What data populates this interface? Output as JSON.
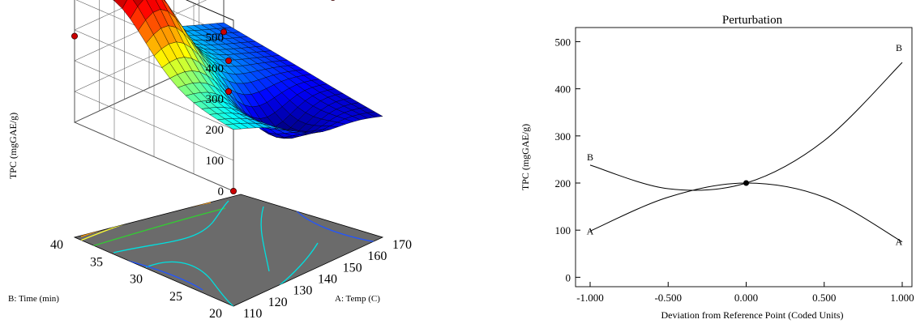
{
  "chart_data": [
    {
      "type": "surface3d",
      "title": "",
      "zlabel": "TPC (mgGAE/g)",
      "xlabel": "A: Temp (C)",
      "ylabel": "B: Time (min)",
      "z_ticks": [
        "0",
        "100",
        "200",
        "300",
        "400",
        "500"
      ],
      "x_ticks": [
        "110",
        "120",
        "130",
        "140",
        "150",
        "160",
        "170"
      ],
      "y_ticks": [
        "20",
        "25",
        "30",
        "35",
        "40"
      ],
      "zlim": [
        0,
        500
      ],
      "xlim": [
        110,
        170
      ],
      "ylim": [
        20,
        40
      ],
      "colormap": "jet",
      "floor_color": "#6b6b6b",
      "corner_values": [
        {
          "temp": 110,
          "time": 20,
          "tpc": 200
        },
        {
          "temp": 110,
          "time": 40,
          "tpc": 280
        },
        {
          "temp": 170,
          "time": 40,
          "tpc": 100
        },
        {
          "temp": 170,
          "time": 20,
          "tpc": 20
        }
      ],
      "peak": {
        "temp": 150,
        "time": 20,
        "tpc": 480
      },
      "design_points": [
        {
          "temp": 110,
          "time": 40,
          "tpc": 280
        },
        {
          "temp": 140,
          "time": 30,
          "tpc": 200
        },
        {
          "temp": 140,
          "time": 30,
          "tpc": 100
        },
        {
          "temp": 140,
          "time": 30,
          "tpc": 100
        },
        {
          "temp": 110,
          "time": 20,
          "tpc": 0
        },
        {
          "temp": 170,
          "time": 40,
          "tpc": 70
        },
        {
          "temp": 150,
          "time": 20,
          "tpc": 480
        }
      ]
    },
    {
      "type": "line",
      "title": "Perturbation",
      "xlabel": "Deviation from Reference Point (Coded Units)",
      "ylabel": "TPC (mgGAE/g)",
      "xlim": [
        -1,
        1
      ],
      "ylim": [
        -20,
        530
      ],
      "x_ticks": [
        "-1.000",
        "-0.500",
        "0.000",
        "0.500",
        "1.000"
      ],
      "y_ticks": [
        "0",
        "100",
        "200",
        "300",
        "400",
        "500"
      ],
      "reference_point": {
        "x": 0,
        "y": 200
      },
      "series": [
        {
          "name": "A",
          "x": [
            -1,
            -0.5,
            0,
            0.5,
            1
          ],
          "y": [
            98,
            170,
            200,
            170,
            75
          ]
        },
        {
          "name": "B",
          "x": [
            -1,
            -0.5,
            0,
            0.5,
            1
          ],
          "y": [
            238,
            188,
            200,
            290,
            456
          ]
        }
      ]
    }
  ]
}
